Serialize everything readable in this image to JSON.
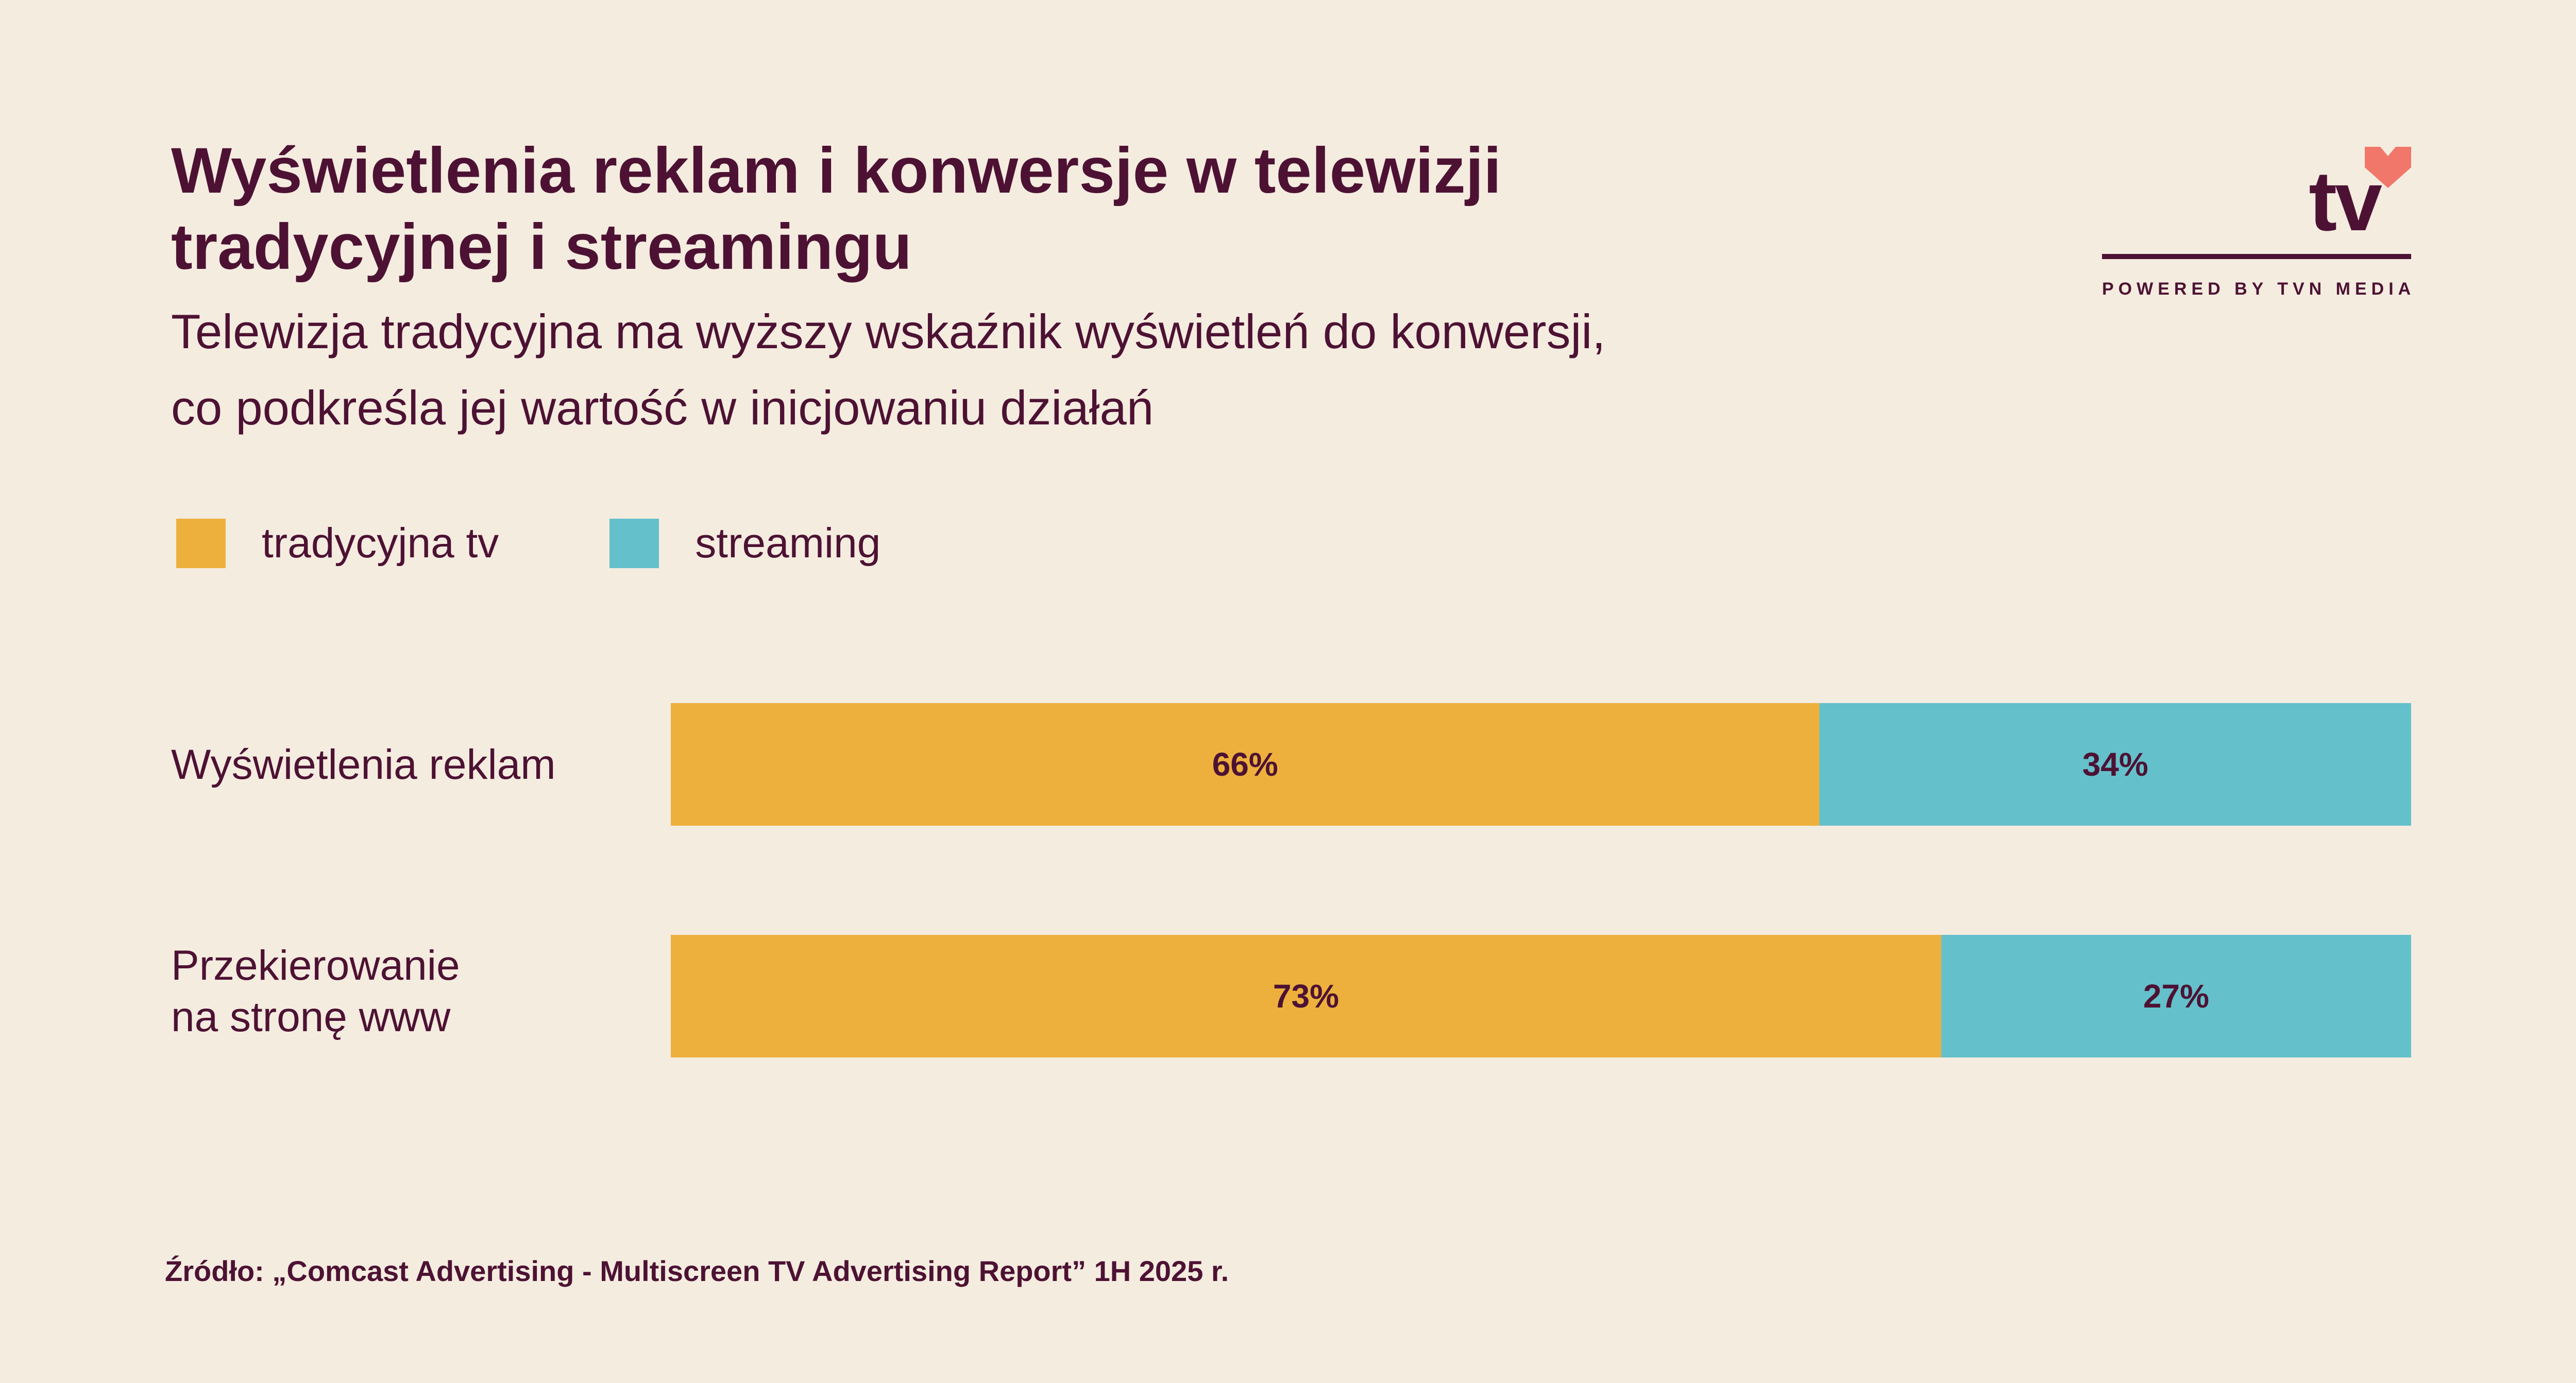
{
  "title": "Wyświetlenia reklam i konwersje w telewizji tradycyjnej i streamingu",
  "subtitle_line1": "Telewizja tradycyjna ma wyższy wskaźnik wyświetleń do konwersji,",
  "subtitle_line2": "co podkreśla jej wartość w inicjowaniu działań",
  "logo": {
    "text": "tv",
    "tagline": "POWERED BY TVN MEDIA",
    "heart_color": "#f0776a"
  },
  "colors": {
    "traditional": "#edb03c",
    "streaming": "#64c0cb",
    "text": "#4d1233",
    "background": "#f5ece0"
  },
  "source": "Źródło: „Comcast Advertising - Multiscreen TV Advertising Report” 1H 2025 r.",
  "chart_data": {
    "type": "bar",
    "orientation": "horizontal",
    "stacked": true,
    "title": "Wyświetlenia reklam i konwersje w telewizji tradycyjnej i streamingu",
    "categories": [
      [
        "Wyświetlenia reklam"
      ],
      [
        "Przekierowanie",
        "na stronę www"
      ]
    ],
    "series": [
      {
        "name": "tradycyjna tv",
        "values": [
          66,
          73
        ],
        "labels": [
          "66%",
          "73%"
        ]
      },
      {
        "name": "streaming",
        "values": [
          34,
          27
        ],
        "labels": [
          "34%",
          "27%"
        ]
      }
    ],
    "xlim": [
      0,
      100
    ],
    "unit": "%",
    "grid": false,
    "legend": "top-left"
  }
}
